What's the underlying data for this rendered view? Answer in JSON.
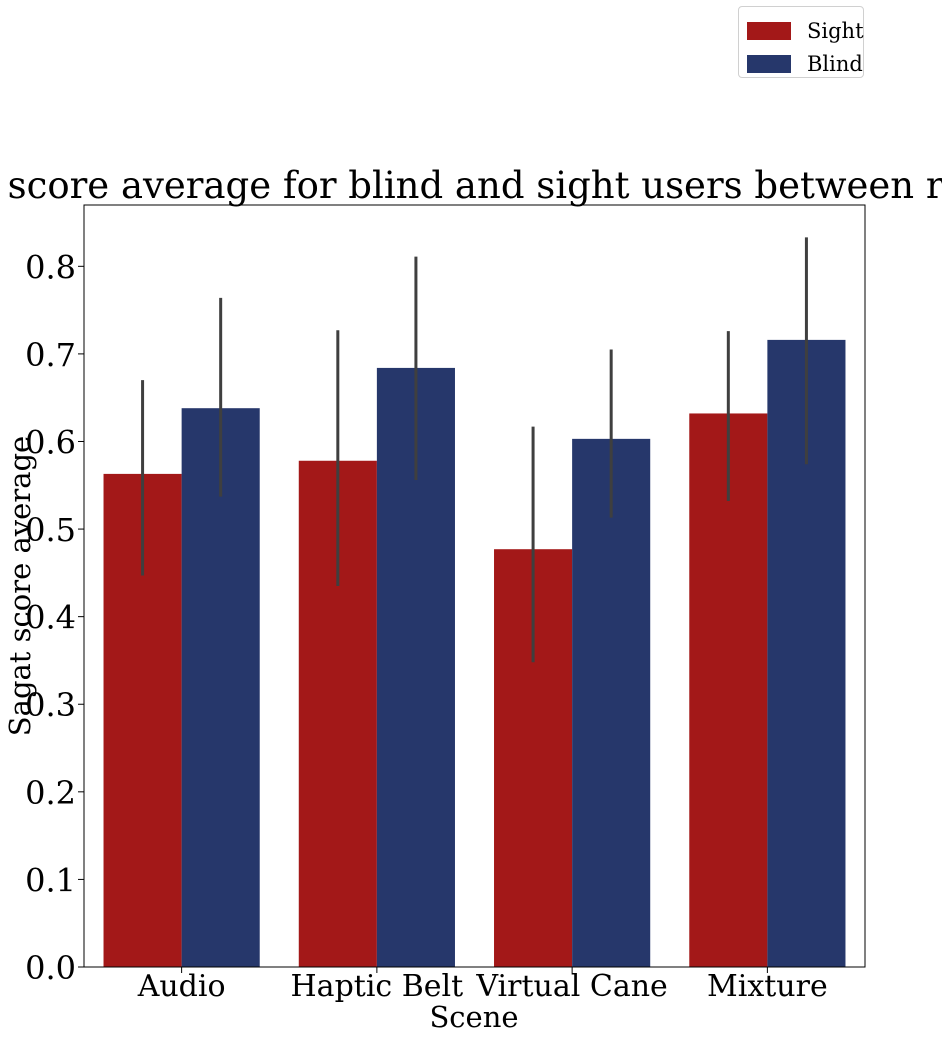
{
  "chart_data": {
    "type": "bar",
    "title": "Sagat score average for blind and sight users between rounds",
    "xlabel": "Scene",
    "ylabel": "Sagat score average",
    "categories": [
      "Audio",
      "Haptic Belt",
      "Virtual Cane",
      "Mixture"
    ],
    "ylim": [
      0,
      0.87
    ],
    "yticks": [
      "0.0",
      "0.1",
      "0.2",
      "0.3",
      "0.4",
      "0.5",
      "0.6",
      "0.7",
      "0.8"
    ],
    "series": [
      {
        "name": "Sight",
        "color": "#a31818",
        "values": [
          0.563,
          0.578,
          0.477,
          0.632
        ],
        "ci_low": [
          0.447,
          0.435,
          0.348,
          0.532
        ],
        "ci_high": [
          0.67,
          0.727,
          0.617,
          0.726
        ]
      },
      {
        "name": "Blind",
        "color": "#26376b",
        "values": [
          0.638,
          0.684,
          0.603,
          0.716
        ],
        "ci_low": [
          0.537,
          0.556,
          0.513,
          0.574
        ],
        "ci_high": [
          0.764,
          0.811,
          0.705,
          0.833
        ]
      }
    ],
    "legend_position": "top-right",
    "error_bar_color": "#3f3f3f"
  }
}
